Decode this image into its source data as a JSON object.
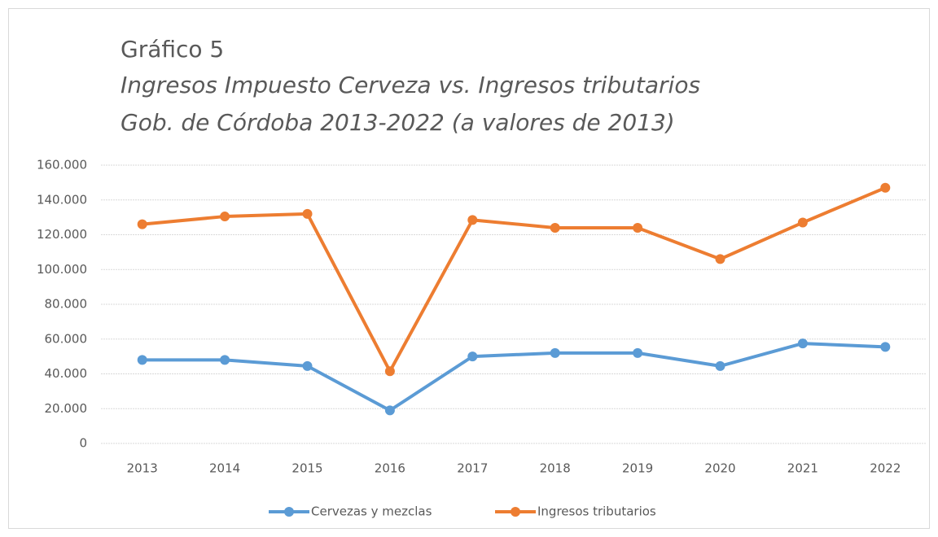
{
  "chart_data": {
    "type": "line",
    "title": "Gráfico 5",
    "subtitle": [
      "Ingresos Impuesto Cerveza vs. Ingresos tributarios",
      "Gob. de Córdoba 2013-2022 (a valores de 2013)"
    ],
    "categories": [
      "2013",
      "2014",
      "2015",
      "2016",
      "2017",
      "2018",
      "2019",
      "2020",
      "2021",
      "2022"
    ],
    "series": [
      {
        "name": "Cervezas y mezclas",
        "color": "#5b9bd5",
        "values": [
          48000,
          48000,
          44500,
          19000,
          50000,
          52000,
          52000,
          44500,
          57500,
          55500
        ]
      },
      {
        "name": "Ingresos tributarios",
        "color": "#ed7d31",
        "values": [
          126000,
          130500,
          132000,
          41500,
          128500,
          124000,
          124000,
          106000,
          127000,
          147000
        ]
      }
    ],
    "ylim": [
      0,
      160000
    ],
    "yticks": [
      0,
      {
        "value": 20000,
        "label": "20.000"
      },
      {
        "value": 40000,
        "label": "40.000"
      },
      {
        "value": 60000,
        "label": "60.000"
      },
      {
        "value": 80000,
        "label": "80.000"
      },
      {
        "value": 100000,
        "label": "100.000"
      },
      {
        "value": 120000,
        "label": "120.000"
      },
      {
        "value": 140000,
        "label": "140.000"
      },
      {
        "value": 160000,
        "label": "160.000"
      }
    ],
    "grid": true,
    "legend": "bottom"
  }
}
